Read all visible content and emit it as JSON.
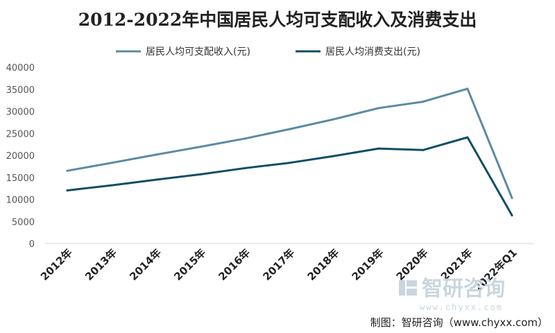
{
  "chart_data": {
    "type": "line",
    "title": "2012-2022年中国居民人均可支配收入及消费支出",
    "categories": [
      "2012年",
      "2013年",
      "2014年",
      "2015年",
      "2016年",
      "2017年",
      "2018年",
      "2019年",
      "2020年",
      "2021年",
      "2022年Q1"
    ],
    "series": [
      {
        "name": "居民人均可支配收入(元)",
        "color": "#5b8aa3",
        "values": [
          16510,
          18311,
          20167,
          21966,
          23821,
          25974,
          28228,
          30733,
          32189,
          35128,
          10345
        ]
      },
      {
        "name": "居民人均消费支出(元)",
        "color": "#0f4e66",
        "values": [
          12054,
          13220,
          14491,
          15712,
          17111,
          18322,
          19853,
          21559,
          21210,
          24100,
          6393
        ]
      }
    ],
    "yticks": [
      0,
      5000,
      10000,
      15000,
      20000,
      25000,
      30000,
      35000,
      40000
    ],
    "ylim": [
      0,
      40000
    ],
    "grid": false,
    "legend_position": "top"
  },
  "watermark": {
    "name": "智研咨询",
    "url": "www.chyxx.com",
    "icon": "chyxx-logo-icon"
  },
  "source_note": "制图：智研咨询（www.chyxx.com）"
}
